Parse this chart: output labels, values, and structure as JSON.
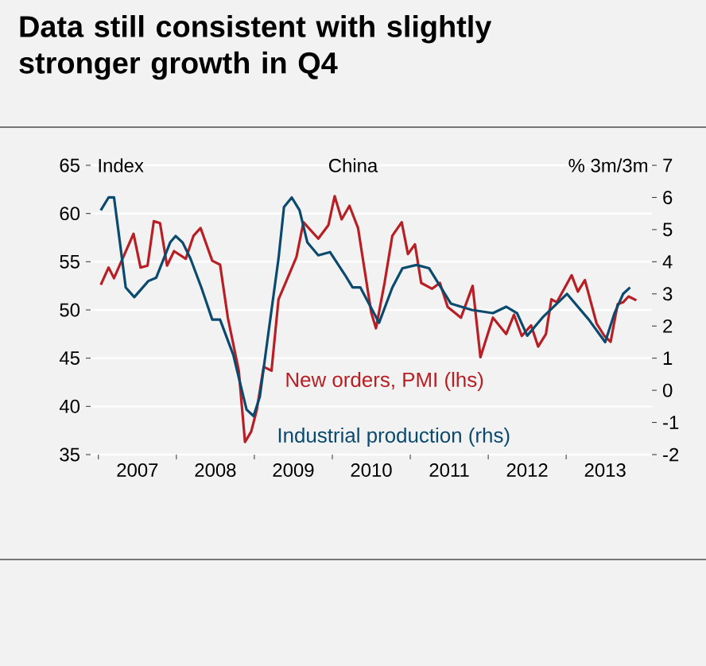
{
  "chart_data": {
    "type": "line",
    "title": "Data still consistent with slightly stronger growth in Q4",
    "subtitle": "China",
    "ylabel": "Index",
    "y2label": "% 3m/3m",
    "xlim": [
      2006.9,
      2014.1
    ],
    "xticks": [
      {
        "value": 2007,
        "label": null
      },
      {
        "value": 2008,
        "label": null
      },
      {
        "value": 2009,
        "label": null
      },
      {
        "value": 2010,
        "label": null
      },
      {
        "value": 2011,
        "label": null
      },
      {
        "value": 2012,
        "label": null
      },
      {
        "value": 2013,
        "label": null
      },
      {
        "value": 2007.5,
        "label": "2007"
      },
      {
        "value": 2008.5,
        "label": "2008"
      },
      {
        "value": 2009.5,
        "label": "2009"
      },
      {
        "value": 2010.5,
        "label": "2010"
      },
      {
        "value": 2011.5,
        "label": "2011"
      },
      {
        "value": 2012.5,
        "label": "2012"
      },
      {
        "value": 2013.5,
        "label": "2013"
      }
    ],
    "ylim": [
      35,
      65
    ],
    "yticks": [
      35,
      40,
      45,
      50,
      55,
      60,
      65
    ],
    "y2lim": [
      -2,
      7
    ],
    "y2ticks": [
      -2,
      -1,
      0,
      1,
      2,
      3,
      4,
      5,
      6,
      7
    ],
    "grid": "y",
    "series": [
      {
        "name": "New orders, PMI (lhs)",
        "color": "#b81f25",
        "x": [
          2007.03,
          2007.13,
          2007.2,
          2007.45,
          2007.54,
          2007.63,
          2007.71,
          2007.79,
          2007.88,
          2007.97,
          2008.12,
          2008.22,
          2008.31,
          2008.46,
          2008.56,
          2008.66,
          2008.8,
          2008.88,
          2008.96,
          2009.03,
          2009.12,
          2009.22,
          2009.31,
          2009.41,
          2009.54,
          2009.63,
          2009.82,
          2009.95,
          2010.03,
          2010.12,
          2010.22,
          2010.33,
          2010.5,
          2010.56,
          2010.67,
          2010.77,
          2010.89,
          2010.97,
          2011.06,
          2011.14,
          2011.28,
          2011.38,
          2011.48,
          2011.65,
          2011.8,
          2011.9,
          2012.06,
          2012.23,
          2012.33,
          2012.43,
          2012.55,
          2012.64,
          2012.74,
          2012.81,
          2012.88,
          2013.07,
          2013.15,
          2013.24,
          2013.39,
          2013.49,
          2013.57,
          2013.66,
          2013.73,
          2013.8,
          2013.9
        ],
        "values": [
          52.6,
          54.4,
          53.3,
          57.9,
          54.4,
          54.6,
          59.2,
          59.0,
          54.6,
          56.1,
          55.3,
          57.7,
          58.5,
          55.1,
          54.7,
          49.2,
          43.7,
          36.3,
          37.4,
          39.6,
          44.1,
          43.7,
          51.1,
          53.0,
          55.5,
          59.1,
          57.4,
          58.8,
          61.8,
          59.4,
          60.8,
          58.5,
          49.7,
          48.1,
          52.8,
          57.7,
          59.1,
          55.8,
          56.8,
          52.8,
          52.2,
          52.8,
          50.3,
          49.2,
          52.5,
          45.1,
          49.2,
          47.5,
          49.5,
          47.3,
          48.4,
          46.2,
          47.5,
          51.1,
          50.8,
          53.6,
          51.9,
          53.1,
          48.6,
          47.3,
          46.7,
          50.6,
          50.8,
          51.4,
          51.0
        ]
      },
      {
        "name": "Industrial production (rhs)",
        "color": "#0b4a6f",
        "axis": "y2",
        "x": [
          2007.03,
          2007.13,
          2007.2,
          2007.27,
          2007.35,
          2007.46,
          2007.64,
          2007.74,
          2007.92,
          2007.99,
          2008.08,
          2008.18,
          2008.32,
          2008.46,
          2008.56,
          2008.73,
          2008.9,
          2008.99,
          2009.07,
          2009.17,
          2009.31,
          2009.38,
          2009.48,
          2009.58,
          2009.68,
          2009.82,
          2009.97,
          2010.16,
          2010.26,
          2010.36,
          2010.6,
          2010.77,
          2010.9,
          2011.08,
          2011.24,
          2011.52,
          2011.79,
          2012.06,
          2012.23,
          2012.37,
          2012.5,
          2012.71,
          2013.01,
          2013.29,
          2013.5,
          2013.62,
          2013.73,
          2013.82
        ],
        "values": [
          5.6,
          6.0,
          6.0,
          4.7,
          3.2,
          2.9,
          3.4,
          3.5,
          4.6,
          4.8,
          4.6,
          4.1,
          3.2,
          2.2,
          2.2,
          1.1,
          -0.6,
          -0.8,
          -0.2,
          1.6,
          4.1,
          5.7,
          6.0,
          5.6,
          4.6,
          4.2,
          4.3,
          3.6,
          3.2,
          3.2,
          2.1,
          3.2,
          3.8,
          3.9,
          3.8,
          2.7,
          2.5,
          2.4,
          2.6,
          2.4,
          1.7,
          2.3,
          3.0,
          2.2,
          1.5,
          2.4,
          3.0,
          3.2
        ]
      }
    ]
  }
}
